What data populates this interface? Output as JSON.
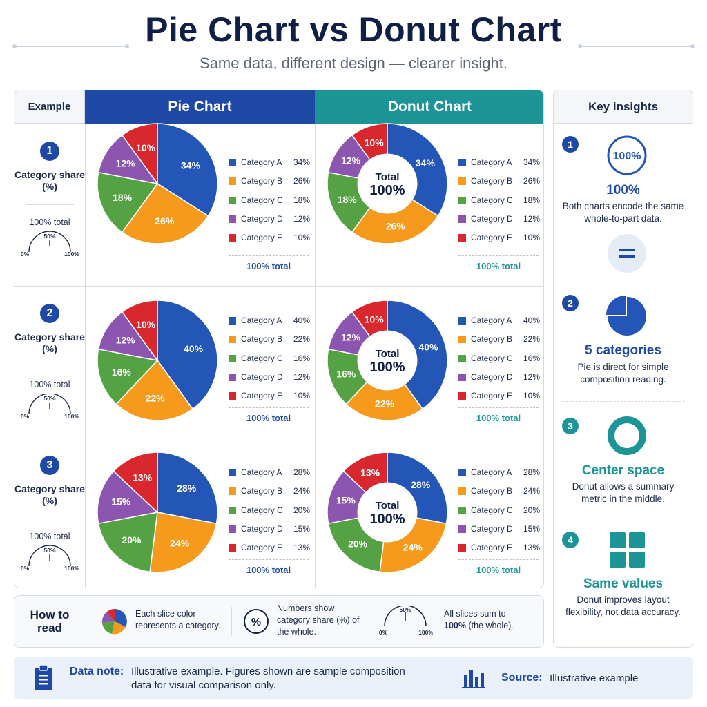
{
  "header": {
    "title": "Pie Chart vs Donut Chart",
    "subtitle": "Same data, different design — clearer insight."
  },
  "table": {
    "example_header": "Example",
    "pie_header": "Pie Chart",
    "donut_header": "Donut Chart",
    "row_label": "Category share (%)",
    "total_text": "100% total",
    "gauge_mid": "50%",
    "gauge_min": "0%",
    "gauge_max": "100%",
    "donut_center_top": "Total",
    "donut_center_value": "100%",
    "legend_total": "100% total"
  },
  "colors": {
    "Category A": "#2456b8",
    "Category B": "#f59a1d",
    "Category C": "#55a245",
    "Category D": "#8b55b0",
    "Category E": "#d9272e",
    "pie_accent": "#1f49a6",
    "donut_accent": "#1d9496"
  },
  "chart_data": [
    {
      "type": "pie",
      "example": "1",
      "categories": [
        "Category A",
        "Category B",
        "Category C",
        "Category D",
        "Category E"
      ],
      "values": [
        34,
        26,
        18,
        12,
        10
      ],
      "unit": "%"
    },
    {
      "type": "pie",
      "example": "2",
      "categories": [
        "Category A",
        "Category B",
        "Category C",
        "Category D",
        "Category E"
      ],
      "values": [
        40,
        22,
        16,
        12,
        10
      ],
      "unit": "%"
    },
    {
      "type": "pie",
      "example": "3",
      "categories": [
        "Category A",
        "Category B",
        "Category C",
        "Category D",
        "Category E"
      ],
      "values": [
        28,
        24,
        20,
        15,
        13
      ],
      "unit": "%"
    }
  ],
  "insights": {
    "title": "Key insights",
    "items": [
      {
        "num": "1",
        "icon": "percent-circle-icon",
        "icon_text": "100%",
        "title": "100%",
        "text": "Both charts encode the same whole-to-part data."
      },
      {
        "num": "2",
        "icon": "pie-icon",
        "title": "5 categories",
        "text": "Pie is direct for simple composition reading."
      },
      {
        "num": "3",
        "icon": "ring-icon",
        "title": "Center space",
        "text": "Donut allows a summary metric in the middle."
      },
      {
        "num": "4",
        "icon": "grid-icon",
        "title": "Same values",
        "text": "Donut improves layout flexibility, not data accuracy."
      }
    ],
    "equals_icon": "equals-icon"
  },
  "howto": {
    "title": "How to read",
    "item1": "Each slice color represents a category.",
    "item2_symbol": "%",
    "item2": "Numbers show category share (%) of the whole.",
    "item3_a": "All slices sum to",
    "item3_b": "100%",
    "item3_c": "(the whole)."
  },
  "footer": {
    "note_label": "Data note:",
    "note_text": "Illustrative example. Figures shown are sample composition data for visual comparison only.",
    "source_label": "Source:",
    "source_text": "Illustrative example"
  }
}
